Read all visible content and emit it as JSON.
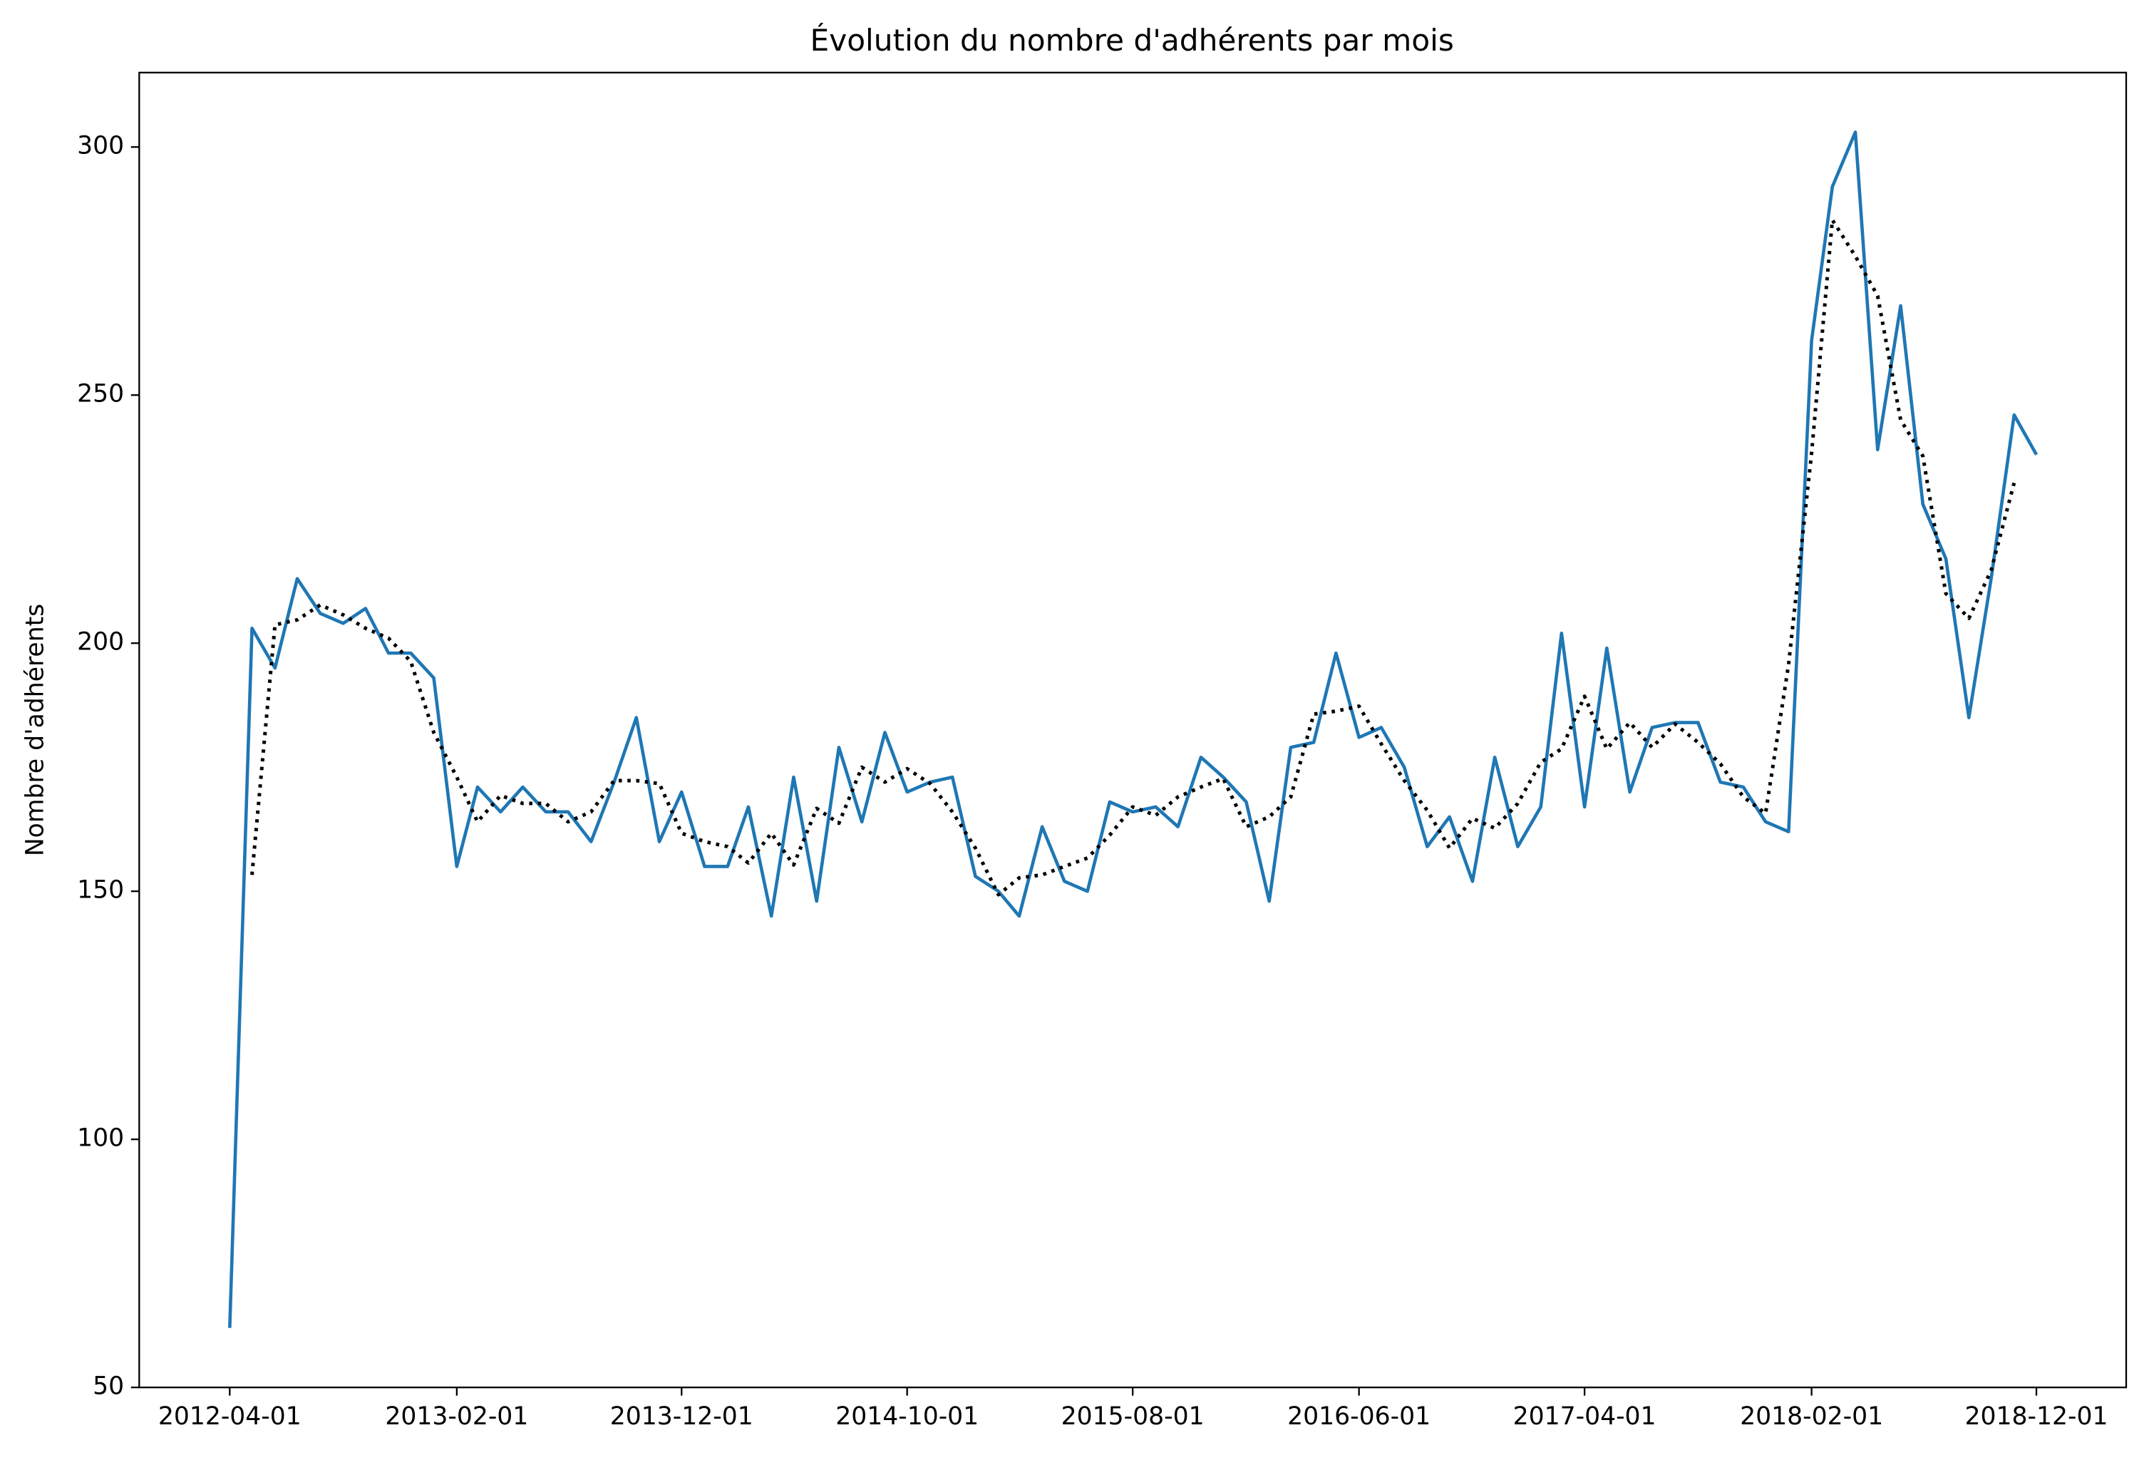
{
  "chart_data": {
    "type": "line",
    "title": "Évolution du nombre d'adhérents par mois",
    "ylabel": "Nombre d'adhérents",
    "x": [
      "2012-04-01",
      "2012-05-01",
      "2012-06-01",
      "2012-07-01",
      "2012-08-01",
      "2012-09-01",
      "2012-10-01",
      "2012-11-01",
      "2012-12-01",
      "2013-01-01",
      "2013-02-01",
      "2013-03-01",
      "2013-04-01",
      "2013-05-01",
      "2013-06-01",
      "2013-07-01",
      "2013-08-01",
      "2013-09-01",
      "2013-10-01",
      "2013-11-01",
      "2013-12-01",
      "2014-01-01",
      "2014-02-01",
      "2014-03-01",
      "2014-04-01",
      "2014-05-01",
      "2014-06-01",
      "2014-07-01",
      "2014-08-01",
      "2014-09-01",
      "2014-10-01",
      "2014-11-01",
      "2014-12-01",
      "2015-01-01",
      "2015-02-01",
      "2015-03-01",
      "2015-04-01",
      "2015-05-01",
      "2015-06-01",
      "2015-07-01",
      "2015-08-01",
      "2015-09-01",
      "2015-10-01",
      "2015-11-01",
      "2015-12-01",
      "2016-01-01",
      "2016-02-01",
      "2016-03-01",
      "2016-04-01",
      "2016-05-01",
      "2016-06-01",
      "2016-07-01",
      "2016-08-01",
      "2016-09-01",
      "2016-10-01",
      "2016-11-01",
      "2016-12-01",
      "2017-01-01",
      "2017-02-01",
      "2017-03-01",
      "2017-04-01",
      "2017-05-01",
      "2017-06-01",
      "2017-07-01",
      "2017-08-01",
      "2017-09-01",
      "2017-10-01",
      "2017-11-01",
      "2017-12-01",
      "2018-01-01",
      "2018-02-01",
      "2018-03-01",
      "2018-04-01",
      "2018-05-01",
      "2018-06-01",
      "2018-07-01",
      "2018-08-01",
      "2018-09-01",
      "2018-10-01",
      "2018-11-01",
      "2018-12-01"
    ],
    "series": [
      {
        "color": "#1f77b4",
        "linestyle": "solid",
        "values": [
          62,
          203,
          195,
          213,
          206,
          204,
          207,
          198,
          198,
          193,
          155,
          171,
          166,
          171,
          166,
          166,
          160,
          172,
          185,
          160,
          170,
          155,
          155,
          167,
          145,
          173,
          148,
          179,
          164,
          182,
          170,
          172,
          173,
          153,
          150,
          145,
          163,
          152,
          150,
          168,
          166,
          167,
          163,
          177,
          173,
          168,
          148,
          179,
          180,
          198,
          181,
          183,
          175,
          159,
          165,
          152,
          177,
          159,
          167,
          202,
          167,
          199,
          170,
          183,
          184,
          184,
          172,
          171,
          164,
          162,
          261,
          292,
          303,
          239,
          268,
          228,
          217,
          185,
          213,
          246,
          238
        ]
      },
      {
        "color": "#000000",
        "linestyle": "dotted",
        "values": [
          null,
          153.3,
          203.7,
          204.7,
          207.7,
          205.7,
          203,
          201,
          196.3,
          182,
          173,
          164,
          169.3,
          167.7,
          167.7,
          164,
          166,
          172.3,
          172.3,
          171.7,
          161.7,
          160,
          159,
          155.7,
          161.7,
          155.3,
          166.7,
          163.7,
          175,
          172,
          174.7,
          171.7,
          166,
          158.7,
          149.3,
          152.7,
          153.3,
          155,
          156.7,
          161.3,
          167,
          165.3,
          169,
          171,
          172.7,
          163,
          165,
          169,
          185.7,
          186.3,
          187.3,
          179.7,
          172.3,
          166.3,
          158.7,
          164.7,
          162.7,
          167.7,
          176,
          178.7,
          189.3,
          178.7,
          184,
          179,
          183.7,
          180,
          175.7,
          169,
          165.7,
          195.7,
          238.3,
          285.3,
          278,
          270,
          245,
          237.7,
          210,
          205,
          214.7,
          232.3,
          null
        ]
      }
    ],
    "xlim": [
      "2011-12-01",
      "2019-04-01"
    ],
    "xticks": [
      "2012-04-01",
      "2013-02-01",
      "2013-12-01",
      "2014-10-01",
      "2015-08-01",
      "2016-06-01",
      "2017-04-01",
      "2018-02-01",
      "2018-12-01"
    ],
    "ylim": [
      50,
      315
    ],
    "yticks": [
      50,
      100,
      150,
      200,
      250,
      300
    ],
    "grid": false
  }
}
